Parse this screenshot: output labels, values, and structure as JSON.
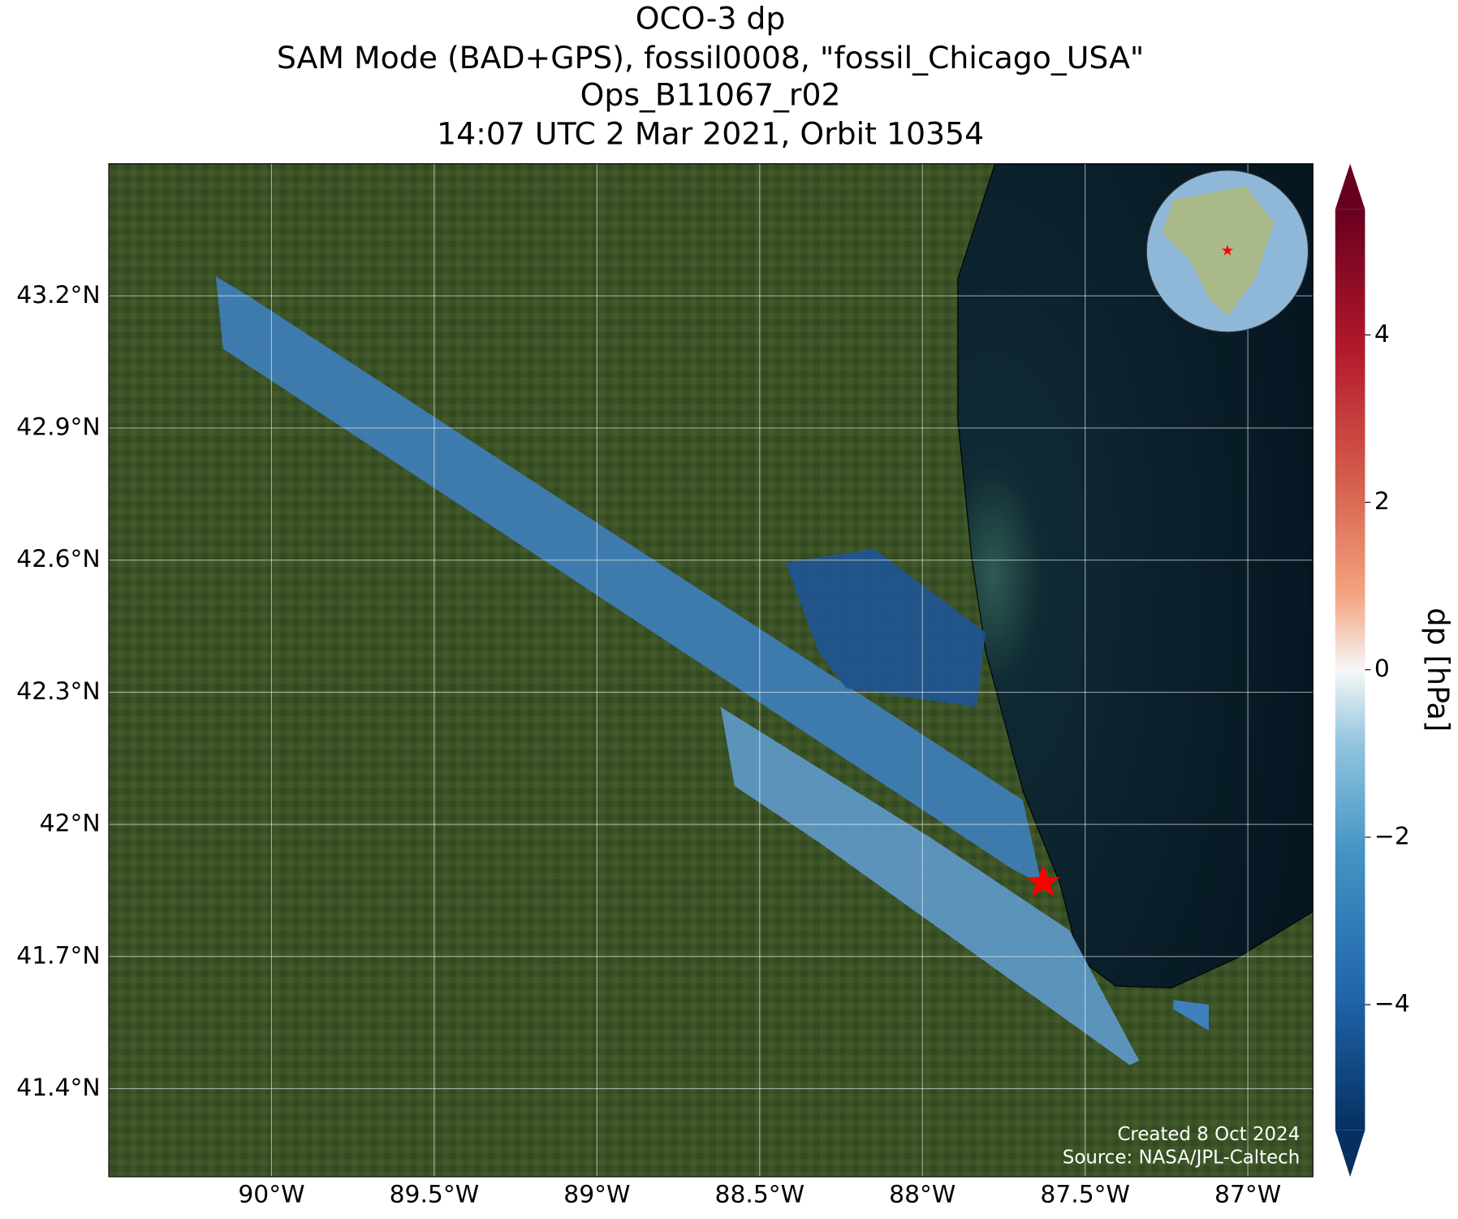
{
  "chart_data": {
    "type": "map",
    "title": [
      "OCO-3 dp",
      "SAM Mode (BAD+GPS), fossil0008, \"fossil_Chicago_USA\"",
      "Ops_B11067_r02",
      "14:07 UTC 2 Mar 2021, Orbit 10354"
    ],
    "xlim": [
      -90.5,
      -86.8
    ],
    "xticks": [
      {
        "value": -90,
        "label": "90°W"
      },
      {
        "value": -89.5,
        "label": "89.5°W"
      },
      {
        "value": -89,
        "label": "89°W"
      },
      {
        "value": -88.5,
        "label": "88.5°W"
      },
      {
        "value": -88,
        "label": "88°W"
      },
      {
        "value": -87.5,
        "label": "87.5°W"
      },
      {
        "value": -87,
        "label": "87°W"
      }
    ],
    "ylim": [
      41.2,
      43.5
    ],
    "yticks": [
      {
        "value": 41.4,
        "label": "41.4°N"
      },
      {
        "value": 41.7,
        "label": "41.7°N"
      },
      {
        "value": 42,
        "label": "42°N"
      },
      {
        "value": 42.3,
        "label": "42.3°N"
      },
      {
        "value": 42.6,
        "label": "42.6°N"
      },
      {
        "value": 42.9,
        "label": "42.9°N"
      },
      {
        "value": 43.2,
        "label": "43.2°N"
      }
    ],
    "grid": true,
    "colorbar": {
      "label": "dp [hPa]",
      "lim": [
        -5.5,
        5.5
      ],
      "ticks": [
        {
          "value": -4,
          "label": "−4"
        },
        {
          "value": -2,
          "label": "−2"
        },
        0,
        2,
        4
      ]
    },
    "credits": [
      "Created 8 Oct 2024",
      "Source: NASA/JPL-Caltech"
    ]
  }
}
